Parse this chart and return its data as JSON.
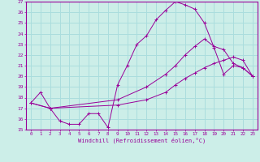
{
  "bg_color": "#cceee8",
  "grid_color": "#aadddd",
  "line_color": "#990099",
  "xlabel": "Windchill (Refroidissement éolien,°C)",
  "xlim_min": -0.5,
  "xlim_max": 23.5,
  "ylim_min": 15,
  "ylim_max": 27,
  "xticks": [
    0,
    1,
    2,
    3,
    4,
    5,
    6,
    7,
    8,
    9,
    10,
    11,
    12,
    13,
    14,
    15,
    16,
    17,
    18,
    19,
    20,
    21,
    22,
    23
  ],
  "yticks": [
    15,
    16,
    17,
    18,
    19,
    20,
    21,
    22,
    23,
    24,
    25,
    26,
    27
  ],
  "line1_x": [
    0,
    1,
    2,
    3,
    4,
    5,
    6,
    7,
    8,
    9,
    10,
    11,
    12,
    13,
    14,
    15,
    16,
    17,
    18,
    19,
    20,
    21,
    22,
    23
  ],
  "line1_y": [
    17.5,
    18.5,
    17.0,
    15.8,
    15.5,
    15.5,
    16.5,
    16.5,
    15.2,
    19.2,
    21.0,
    23.0,
    23.8,
    25.3,
    26.2,
    27.0,
    26.7,
    26.3,
    25.0,
    22.7,
    20.2,
    21.0,
    20.8,
    20.0
  ],
  "line2_x": [
    0,
    2,
    9,
    12,
    14,
    15,
    16,
    17,
    18,
    19,
    20,
    21,
    22,
    23
  ],
  "line2_y": [
    17.5,
    17.0,
    17.8,
    19.0,
    20.2,
    21.0,
    22.0,
    22.8,
    23.5,
    22.8,
    22.5,
    21.2,
    20.8,
    20.0
  ],
  "line3_x": [
    0,
    2,
    9,
    12,
    14,
    15,
    16,
    17,
    18,
    19,
    20,
    21,
    22,
    23
  ],
  "line3_y": [
    17.5,
    17.0,
    17.3,
    17.8,
    18.5,
    19.2,
    19.8,
    20.3,
    20.8,
    21.2,
    21.5,
    21.8,
    21.5,
    20.0
  ]
}
